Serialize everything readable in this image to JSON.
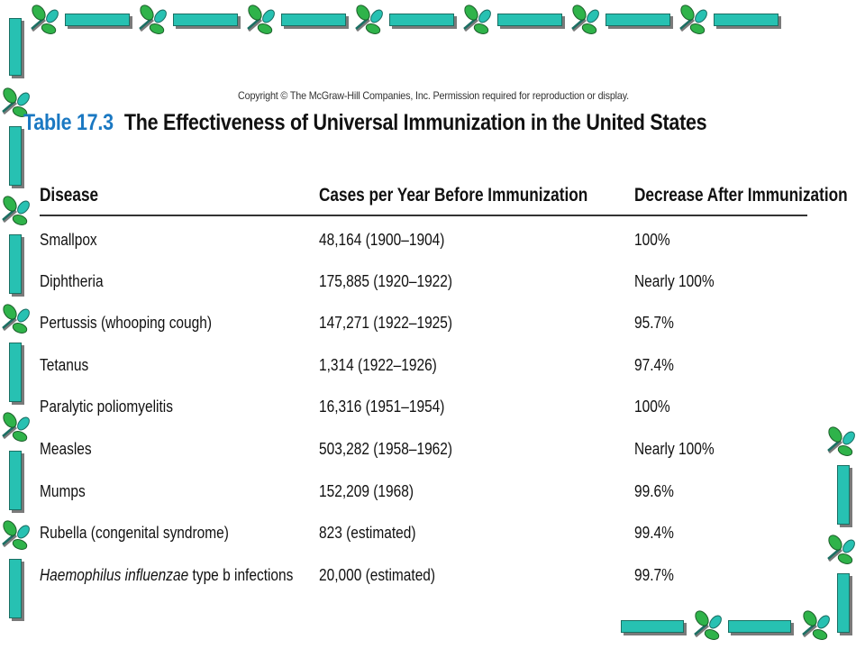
{
  "colors": {
    "frame_bar": "#27c1b2",
    "leaf_green": "#2fb34a",
    "leaf_teal": "#27c1b2",
    "title_number": "#1a78c2"
  },
  "decoration": {
    "icon": "leaf-sprig-icon"
  },
  "copyright": "Copyright © The McGraw-Hill Companies, Inc. Permission required for reproduction or display.",
  "table": {
    "number": "Table 17.3",
    "caption": "The Effectiveness of Universal Immunization in the United States",
    "headers": [
      "Disease",
      "Cases per Year Before Immunization",
      "Decrease After Immunization"
    ],
    "rows": [
      {
        "disease": "Smallpox",
        "cases": "48,164 (1900–1904)",
        "decrease": "100%"
      },
      {
        "disease": "Diphtheria",
        "cases": "175,885 (1920–1922)",
        "decrease": "Nearly 100%"
      },
      {
        "disease": "Pertussis (whooping cough)",
        "cases": "147,271 (1922–1925)",
        "decrease": "95.7%"
      },
      {
        "disease": "Tetanus",
        "cases": "1,314 (1922–1926)",
        "decrease": "97.4%"
      },
      {
        "disease": "Paralytic poliomyelitis",
        "cases": "16,316 (1951–1954)",
        "decrease": "100%"
      },
      {
        "disease": "Measles",
        "cases": "503,282 (1958–1962)",
        "decrease": "Nearly 100%"
      },
      {
        "disease": "Mumps",
        "cases": "152,209 (1968)",
        "decrease": "99.6%"
      },
      {
        "disease": "Rubella (congenital syndrome)",
        "cases": "823 (estimated)",
        "decrease": "99.4%"
      },
      {
        "disease_italic": "Haemophilus influenzae",
        "disease_rest": " type b infections",
        "cases": "20,000 (estimated)",
        "decrease": "99.7%"
      }
    ]
  }
}
